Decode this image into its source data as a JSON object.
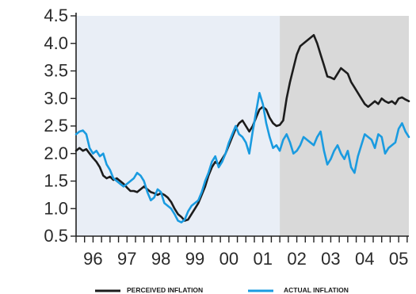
{
  "chart_data": {
    "type": "line",
    "title": "",
    "xlabel": "",
    "ylabel": "",
    "xlim": [
      1995.5,
      2005.3
    ],
    "ylim": [
      0.5,
      4.5
    ],
    "yticks": [
      "0.5",
      "1.0",
      "1.5",
      "2.0",
      "2.5",
      "3.0",
      "3.5",
      "4.0",
      "4.5"
    ],
    "xticks": [
      {
        "label": "96",
        "x": 1996
      },
      {
        "label": "97",
        "x": 1997
      },
      {
        "label": "98",
        "x": 1998
      },
      {
        "label": "99",
        "x": 1999
      },
      {
        "label": "00",
        "x": 2000
      },
      {
        "label": "01",
        "x": 2001
      },
      {
        "label": "02",
        "x": 2002
      },
      {
        "label": "03",
        "x": 2003
      },
      {
        "label": "04",
        "x": 2004
      },
      {
        "label": "05",
        "x": 2005
      }
    ],
    "shaded_region": {
      "x_start": 2001.5,
      "x_end": 2005.3
    },
    "legend_position": "bottom",
    "series": [
      {
        "name": "PERCEIVED INFLATION",
        "color": "#1c1c1c",
        "points": [
          [
            1995.5,
            2.05
          ],
          [
            1995.6,
            2.1
          ],
          [
            1995.7,
            2.05
          ],
          [
            1995.8,
            2.08
          ],
          [
            1995.9,
            2.0
          ],
          [
            1996.0,
            1.92
          ],
          [
            1996.1,
            1.85
          ],
          [
            1996.2,
            1.75
          ],
          [
            1996.3,
            1.6
          ],
          [
            1996.4,
            1.55
          ],
          [
            1996.5,
            1.58
          ],
          [
            1996.6,
            1.52
          ],
          [
            1996.7,
            1.55
          ],
          [
            1996.8,
            1.5
          ],
          [
            1996.9,
            1.45
          ],
          [
            1997.0,
            1.38
          ],
          [
            1997.1,
            1.32
          ],
          [
            1997.2,
            1.32
          ],
          [
            1997.3,
            1.3
          ],
          [
            1997.4,
            1.35
          ],
          [
            1997.5,
            1.4
          ],
          [
            1997.6,
            1.35
          ],
          [
            1997.7,
            1.3
          ],
          [
            1997.8,
            1.28
          ],
          [
            1997.9,
            1.25
          ],
          [
            1998.0,
            1.28
          ],
          [
            1998.1,
            1.25
          ],
          [
            1998.2,
            1.2
          ],
          [
            1998.3,
            1.12
          ],
          [
            1998.4,
            1.0
          ],
          [
            1998.5,
            0.9
          ],
          [
            1998.6,
            0.85
          ],
          [
            1998.7,
            0.78
          ],
          [
            1998.8,
            0.8
          ],
          [
            1998.9,
            0.9
          ],
          [
            1999.0,
            1.0
          ],
          [
            1999.1,
            1.1
          ],
          [
            1999.2,
            1.25
          ],
          [
            1999.3,
            1.4
          ],
          [
            1999.4,
            1.6
          ],
          [
            1999.5,
            1.75
          ],
          [
            1999.6,
            1.85
          ],
          [
            1999.7,
            1.8
          ],
          [
            1999.8,
            1.9
          ],
          [
            1999.9,
            2.0
          ],
          [
            2000.0,
            2.15
          ],
          [
            2000.1,
            2.3
          ],
          [
            2000.2,
            2.45
          ],
          [
            2000.3,
            2.55
          ],
          [
            2000.4,
            2.6
          ],
          [
            2000.5,
            2.5
          ],
          [
            2000.6,
            2.4
          ],
          [
            2000.7,
            2.5
          ],
          [
            2000.8,
            2.65
          ],
          [
            2000.9,
            2.8
          ],
          [
            2001.0,
            2.85
          ],
          [
            2001.1,
            2.8
          ],
          [
            2001.2,
            2.65
          ],
          [
            2001.3,
            2.55
          ],
          [
            2001.4,
            2.5
          ],
          [
            2001.5,
            2.52
          ],
          [
            2001.6,
            2.6
          ],
          [
            2001.7,
            3.0
          ],
          [
            2001.8,
            3.3
          ],
          [
            2001.9,
            3.55
          ],
          [
            2002.0,
            3.8
          ],
          [
            2002.1,
            3.95
          ],
          [
            2002.2,
            4.0
          ],
          [
            2002.3,
            4.05
          ],
          [
            2002.4,
            4.1
          ],
          [
            2002.5,
            4.15
          ],
          [
            2002.6,
            4.0
          ],
          [
            2002.7,
            3.8
          ],
          [
            2002.8,
            3.6
          ],
          [
            2002.9,
            3.4
          ],
          [
            2003.0,
            3.38
          ],
          [
            2003.1,
            3.35
          ],
          [
            2003.2,
            3.45
          ],
          [
            2003.3,
            3.55
          ],
          [
            2003.4,
            3.5
          ],
          [
            2003.5,
            3.45
          ],
          [
            2003.6,
            3.3
          ],
          [
            2003.7,
            3.2
          ],
          [
            2003.8,
            3.1
          ],
          [
            2003.9,
            3.0
          ],
          [
            2004.0,
            2.9
          ],
          [
            2004.1,
            2.85
          ],
          [
            2004.2,
            2.9
          ],
          [
            2004.3,
            2.95
          ],
          [
            2004.4,
            2.9
          ],
          [
            2004.5,
            3.0
          ],
          [
            2004.6,
            2.95
          ],
          [
            2004.7,
            2.92
          ],
          [
            2004.8,
            2.95
          ],
          [
            2004.9,
            2.9
          ],
          [
            2005.0,
            3.0
          ],
          [
            2005.1,
            3.02
          ],
          [
            2005.2,
            2.98
          ],
          [
            2005.3,
            2.95
          ]
        ]
      },
      {
        "name": "ACTUAL INFLATION",
        "color": "#1a9be0",
        "points": [
          [
            1995.5,
            2.35
          ],
          [
            1995.6,
            2.4
          ],
          [
            1995.7,
            2.42
          ],
          [
            1995.8,
            2.35
          ],
          [
            1995.9,
            2.1
          ],
          [
            1996.0,
            2.0
          ],
          [
            1996.1,
            2.05
          ],
          [
            1996.2,
            1.95
          ],
          [
            1996.3,
            2.0
          ],
          [
            1996.4,
            1.8
          ],
          [
            1996.5,
            1.7
          ],
          [
            1996.6,
            1.55
          ],
          [
            1996.7,
            1.5
          ],
          [
            1996.8,
            1.45
          ],
          [
            1996.9,
            1.4
          ],
          [
            1997.0,
            1.45
          ],
          [
            1997.1,
            1.5
          ],
          [
            1997.2,
            1.55
          ],
          [
            1997.3,
            1.65
          ],
          [
            1997.4,
            1.6
          ],
          [
            1997.5,
            1.5
          ],
          [
            1997.6,
            1.3
          ],
          [
            1997.7,
            1.15
          ],
          [
            1997.8,
            1.2
          ],
          [
            1997.9,
            1.35
          ],
          [
            1998.0,
            1.3
          ],
          [
            1998.1,
            1.1
          ],
          [
            1998.2,
            1.05
          ],
          [
            1998.3,
            1.0
          ],
          [
            1998.4,
            0.9
          ],
          [
            1998.5,
            0.78
          ],
          [
            1998.6,
            0.75
          ],
          [
            1998.7,
            0.8
          ],
          [
            1998.8,
            0.95
          ],
          [
            1998.9,
            1.05
          ],
          [
            1999.0,
            1.1
          ],
          [
            1999.1,
            1.15
          ],
          [
            1999.2,
            1.3
          ],
          [
            1999.3,
            1.5
          ],
          [
            1999.4,
            1.65
          ],
          [
            1999.5,
            1.85
          ],
          [
            1999.6,
            1.95
          ],
          [
            1999.7,
            1.75
          ],
          [
            1999.8,
            1.85
          ],
          [
            1999.9,
            2.0
          ],
          [
            2000.0,
            2.2
          ],
          [
            2000.1,
            2.35
          ],
          [
            2000.2,
            2.5
          ],
          [
            2000.3,
            2.35
          ],
          [
            2000.4,
            2.3
          ],
          [
            2000.5,
            2.2
          ],
          [
            2000.6,
            2.0
          ],
          [
            2000.7,
            2.4
          ],
          [
            2000.8,
            2.75
          ],
          [
            2000.9,
            3.1
          ],
          [
            2001.0,
            2.9
          ],
          [
            2001.1,
            2.55
          ],
          [
            2001.2,
            2.3
          ],
          [
            2001.3,
            2.1
          ],
          [
            2001.4,
            2.15
          ],
          [
            2001.5,
            2.05
          ],
          [
            2001.6,
            2.25
          ],
          [
            2001.7,
            2.35
          ],
          [
            2001.8,
            2.2
          ],
          [
            2001.9,
            2.0
          ],
          [
            2002.0,
            2.05
          ],
          [
            2002.1,
            2.15
          ],
          [
            2002.2,
            2.3
          ],
          [
            2002.3,
            2.25
          ],
          [
            2002.4,
            2.2
          ],
          [
            2002.5,
            2.15
          ],
          [
            2002.6,
            2.3
          ],
          [
            2002.7,
            2.4
          ],
          [
            2002.8,
            2.05
          ],
          [
            2002.9,
            1.8
          ],
          [
            2003.0,
            1.9
          ],
          [
            2003.1,
            2.05
          ],
          [
            2003.2,
            2.15
          ],
          [
            2003.3,
            2.0
          ],
          [
            2003.4,
            1.9
          ],
          [
            2003.5,
            2.05
          ],
          [
            2003.6,
            1.75
          ],
          [
            2003.7,
            1.65
          ],
          [
            2003.8,
            1.95
          ],
          [
            2003.9,
            2.15
          ],
          [
            2004.0,
            2.35
          ],
          [
            2004.1,
            2.3
          ],
          [
            2004.2,
            2.25
          ],
          [
            2004.3,
            2.1
          ],
          [
            2004.4,
            2.35
          ],
          [
            2004.5,
            2.3
          ],
          [
            2004.6,
            2.0
          ],
          [
            2004.7,
            2.1
          ],
          [
            2004.8,
            2.15
          ],
          [
            2004.9,
            2.2
          ],
          [
            2005.0,
            2.45
          ],
          [
            2005.1,
            2.55
          ],
          [
            2005.2,
            2.4
          ],
          [
            2005.3,
            2.3
          ]
        ]
      }
    ]
  }
}
